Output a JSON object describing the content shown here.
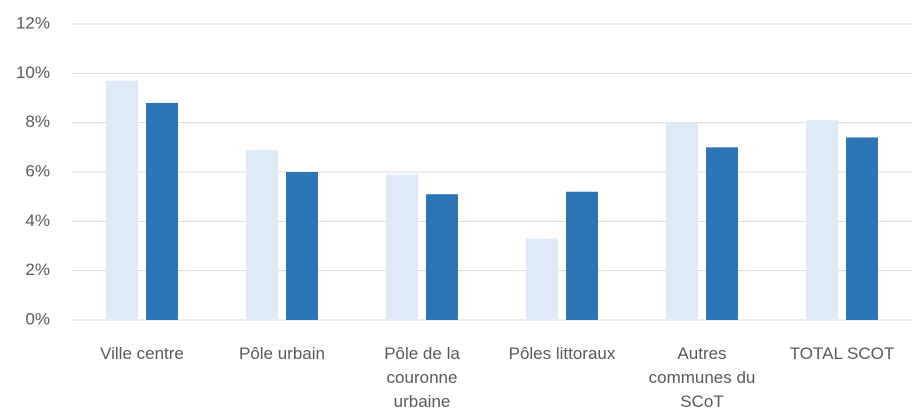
{
  "chart_data": {
    "type": "bar",
    "categories": [
      "Ville centre",
      "Pôle urbain",
      "Pôle de la couronne urbaine",
      "Pôles littoraux",
      "Autres communes du SCoT",
      "TOTAL SCOT"
    ],
    "series": [
      {
        "color": "#deebf7",
        "values": [
          9.7,
          6.9,
          5.9,
          3.3,
          8.0,
          8.1
        ]
      },
      {
        "color": "#2e75b6",
        "values": [
          8.8,
          6.0,
          5.1,
          5.2,
          7.0,
          7.4
        ]
      }
    ],
    "ylim": [
      0,
      12
    ],
    "yticks": [
      {
        "value": 0,
        "label": "0%"
      },
      {
        "value": 2,
        "label": "2%"
      },
      {
        "value": 4,
        "label": "4%"
      },
      {
        "value": 6,
        "label": "6%"
      },
      {
        "value": 8,
        "label": "8%"
      },
      {
        "value": 10,
        "label": "10%"
      },
      {
        "value": 12,
        "label": "12%"
      }
    ],
    "grid": true
  }
}
